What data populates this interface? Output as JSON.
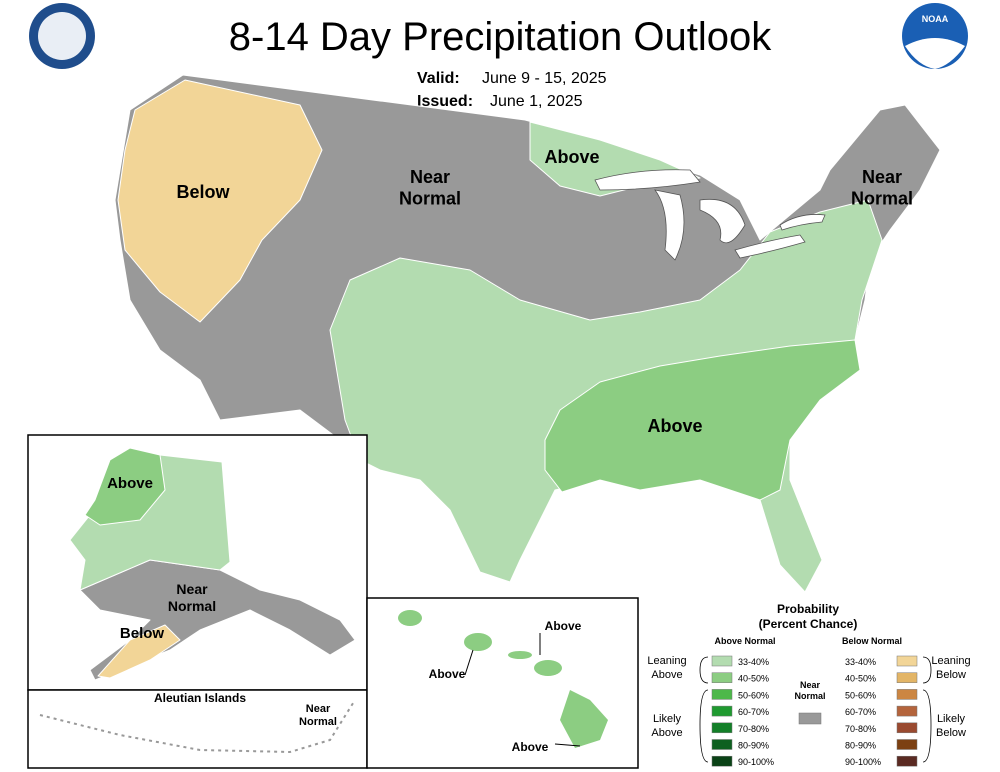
{
  "header": {
    "title": "8-14 Day Precipitation Outlook",
    "valid_label": "Valid:",
    "valid": "June 9 - 15, 2025",
    "issued_label": "Issued:",
    "issued": "June 1, 2025",
    "logo_text": "NOAA"
  },
  "map_labels": [
    {
      "lines": [
        "Below"
      ]
    },
    {
      "lines": [
        "Near",
        "Normal"
      ]
    },
    {
      "lines": [
        "Above"
      ]
    },
    {
      "lines": [
        "Near",
        "Normal"
      ]
    },
    {
      "lines": [
        "Above"
      ]
    },
    {
      "lines": [
        "Above"
      ]
    },
    {
      "lines": [
        "Near",
        "Normal"
      ]
    },
    {
      "lines": [
        "Below"
      ]
    },
    {
      "lines": [
        "Aleutian Islands"
      ]
    },
    {
      "lines": [
        "Near",
        "Normal"
      ]
    },
    {
      "lines": [
        "Above"
      ]
    },
    {
      "lines": [
        "Above"
      ]
    },
    {
      "lines": [
        "Above"
      ]
    }
  ],
  "legend": {
    "title": "Probability",
    "subtitle": "(Percent Chance)",
    "above_heading": "Above Normal",
    "below_heading": "Below Normal",
    "near_normal": {
      "lines": [
        "Near",
        "Normal"
      ],
      "color": "#999999"
    },
    "leaning_above": [
      "Leaning",
      "Above"
    ],
    "likely_above": [
      "Likely",
      "Above"
    ],
    "leaning_below": [
      "Leaning",
      "Below"
    ],
    "likely_below": [
      "Likely",
      "Below"
    ],
    "above_items": [
      {
        "label": "33-40%",
        "color": "#b3dcb0"
      },
      {
        "label": "40-50%",
        "color": "#8ccd82"
      },
      {
        "label": "50-60%",
        "color": "#4db84a"
      },
      {
        "label": "60-70%",
        "color": "#1f9a30"
      },
      {
        "label": "70-80%",
        "color": "#137f28"
      },
      {
        "label": "80-90%",
        "color": "#0e6020"
      },
      {
        "label": "90-100%",
        "color": "#0a4216"
      }
    ],
    "below_items": [
      {
        "label": "33-40%",
        "color": "#f2d597"
      },
      {
        "label": "40-50%",
        "color": "#e3b566"
      },
      {
        "label": "50-60%",
        "color": "#cc8642"
      },
      {
        "label": "60-70%",
        "color": "#b4643c"
      },
      {
        "label": "70-80%",
        "color": "#9a4a30"
      },
      {
        "label": "80-90%",
        "color": "#7c4012"
      },
      {
        "label": "90-100%",
        "color": "#5a2a22"
      }
    ]
  }
}
